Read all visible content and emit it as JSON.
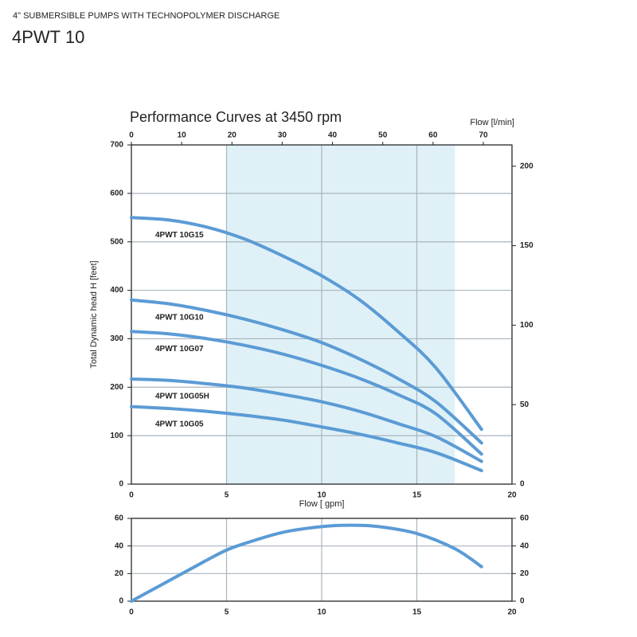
{
  "header": {
    "subtitle": "4\" SUBMERSIBLE PUMPS WITH TECHNOPOLYMER DISCHARGE",
    "title": "4PWT 10"
  },
  "chart_data": [
    {
      "type": "line",
      "title": "Performance Curves at 3450 rpm",
      "x_label": "Flow [ gpm]",
      "y_label": "Total Dynamic head H [feet]",
      "x2_label": "Flow [l/min]",
      "x": [
        0,
        2,
        4,
        6,
        8,
        10,
        12,
        14,
        16,
        18.4
      ],
      "xlim": [
        0,
        20
      ],
      "xticks": [
        0,
        5,
        10,
        15,
        20
      ],
      "x2lim": [
        0,
        75.7
      ],
      "x2ticks": [
        0,
        10,
        20,
        30,
        40,
        50,
        60,
        70
      ],
      "ylim": [
        0,
        700
      ],
      "yticks": [
        0,
        100,
        200,
        300,
        400,
        500,
        600,
        700
      ],
      "y2lim": [
        0,
        213.4
      ],
      "y2ticks": [
        0,
        50,
        100,
        150,
        200
      ],
      "shaded_range": [
        5,
        17
      ],
      "shade_color": "#dff1f7",
      "grid": true,
      "series": [
        {
          "name": "4PWT 10G15",
          "color": "#5b9bd5",
          "values": [
            550,
            545,
            530,
            505,
            470,
            430,
            380,
            315,
            240,
            113
          ]
        },
        {
          "name": "4PWT 10G10",
          "color": "#5b9bd5",
          "values": [
            380,
            372,
            358,
            340,
            318,
            292,
            258,
            218,
            170,
            85
          ]
        },
        {
          "name": "4PWT 10G07",
          "color": "#5b9bd5",
          "values": [
            315,
            310,
            300,
            286,
            268,
            245,
            218,
            185,
            145,
            62
          ]
        },
        {
          "name": "4PWT 10G05H",
          "color": "#5b9bd5",
          "values": [
            217,
            214,
            207,
            198,
            185,
            170,
            150,
            125,
            98,
            47
          ]
        },
        {
          "name": "4PWT 10G05",
          "color": "#5b9bd5",
          "values": [
            160,
            156,
            150,
            142,
            132,
            118,
            103,
            85,
            65,
            28
          ]
        }
      ]
    },
    {
      "type": "line",
      "x": [
        0,
        2,
        4,
        5,
        6,
        8,
        10,
        11.5,
        13,
        15,
        17,
        18.4
      ],
      "xlim": [
        0,
        20
      ],
      "xticks": [
        0,
        5,
        10,
        15,
        20
      ],
      "ylim": [
        0,
        60
      ],
      "yticks": [
        0,
        20,
        40,
        60
      ],
      "y2lim": [
        0,
        60
      ],
      "y2ticks": [
        0,
        20,
        40,
        60
      ],
      "grid": true,
      "series": [
        {
          "color": "#5b9bd5",
          "values": [
            0,
            15,
            30,
            37,
            42,
            50,
            54,
            55,
            54,
            49,
            38,
            25
          ]
        }
      ]
    }
  ]
}
